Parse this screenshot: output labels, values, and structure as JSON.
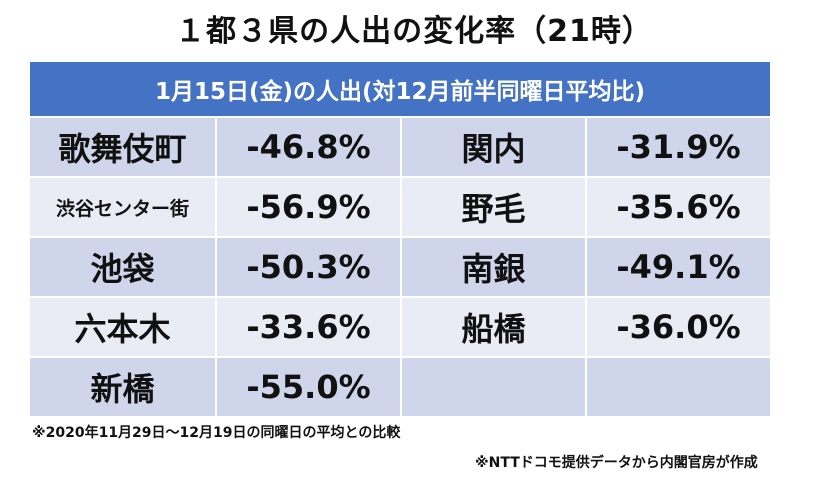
{
  "title": "１都３県の人出の変化率（21時）",
  "header": "1月15日(金)の人出(対12月前半同曜日平均比)",
  "rows": [
    {
      "place1": "歌舞伎町",
      "value1": "-46.8%",
      "place2": "関内",
      "value2": "-31.9%"
    },
    {
      "place1": "渋谷センター街",
      "value1": "-56.9%",
      "place2": "野毛",
      "value2": "-35.6%"
    },
    {
      "place1": "池袋",
      "value1": "-50.3%",
      "place2": "南銀",
      "value2": "-49.1%"
    },
    {
      "place1": "六本木",
      "value1": "-33.6%",
      "place2": "船橋",
      "value2": "-36.0%"
    },
    {
      "place1": "新橋",
      "value1": "-55.0%",
      "place2": "",
      "value2": ""
    }
  ],
  "note1": "※2020年11月29日～12月19日の同曜日の平均との比較",
  "note2": "※NTTドコモ提供データから内閣官房が作成"
}
